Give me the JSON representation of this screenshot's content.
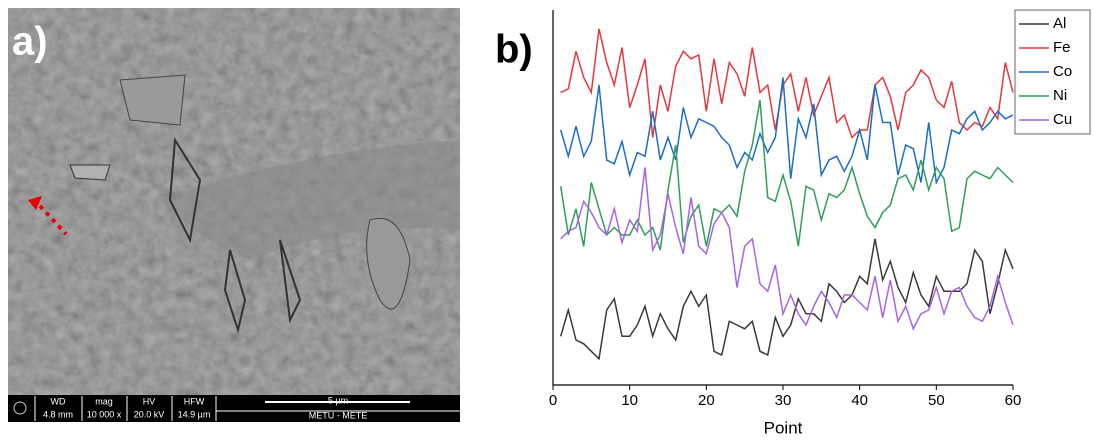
{
  "sem_image": {
    "panel_label": "a)",
    "info_bar": {
      "headers": [
        "WD",
        "mag",
        "HV",
        "HFW"
      ],
      "values": [
        "4.8 mm",
        "10 000 x",
        "20.0 kV",
        "14.9 µm"
      ],
      "scale": "5 µm",
      "lab": "METU - METE"
    }
  },
  "chart_data": {
    "type": "line",
    "panel_label": "b)",
    "x_label": "Point",
    "x": [
      1,
      2,
      3,
      4,
      5,
      6,
      7,
      8,
      9,
      10,
      11,
      12,
      13,
      14,
      15,
      16,
      17,
      18,
      19,
      20,
      21,
      22,
      23,
      24,
      25,
      26,
      27,
      28,
      29,
      30,
      31,
      32,
      33,
      34,
      35,
      36,
      37,
      38,
      39,
      40,
      41,
      42,
      43,
      44,
      45,
      46,
      47,
      48,
      49,
      50,
      51,
      52,
      53,
      54,
      55,
      56,
      57,
      58,
      59,
      60
    ],
    "xlim": [
      0,
      60
    ],
    "xticks": [
      0,
      10,
      20,
      30,
      40,
      50,
      60
    ],
    "ylim": [
      0,
      100
    ],
    "legend": "right",
    "series": [
      {
        "name": "Al",
        "color": "#3a3a3a",
        "values": [
          13,
          20,
          12,
          11,
          9,
          7,
          20,
          23,
          13,
          13,
          16,
          21,
          13,
          19,
          15,
          12,
          21,
          25,
          21,
          24,
          9,
          8,
          17,
          16,
          15,
          17,
          9,
          8,
          18,
          13,
          16,
          23,
          19,
          19,
          17,
          27,
          25,
          22,
          24,
          29,
          27,
          39,
          28,
          33,
          26,
          22,
          30,
          24,
          21,
          29,
          25,
          25,
          25,
          27,
          36,
          33,
          19,
          27,
          36,
          31
        ]
      },
      {
        "name": "Fe",
        "color": "#e0393e",
        "values": [
          78,
          79,
          89,
          82,
          78,
          95,
          86,
          80,
          90,
          74,
          80,
          87,
          66,
          80,
          73,
          85,
          89,
          87,
          88,
          73,
          87,
          75,
          86,
          83,
          77,
          90,
          78,
          80,
          68,
          80,
          83,
          73,
          82,
          72,
          77,
          82,
          70,
          72,
          66,
          68,
          68,
          80,
          82,
          77,
          68,
          78,
          80,
          84,
          82,
          76,
          74,
          81,
          70,
          68,
          70,
          69,
          74,
          71,
          86,
          78
        ]
      },
      {
        "name": "Co",
        "color": "#1c6ec4",
        "values": [
          68,
          61,
          69,
          61,
          65,
          80,
          60,
          59,
          65,
          56,
          62,
          61,
          73,
          60,
          66,
          60,
          74,
          66,
          71,
          70,
          69,
          66,
          64,
          58,
          62,
          60,
          67,
          62,
          66,
          82,
          55,
          71,
          66,
          75,
          56,
          60,
          61,
          57,
          61,
          68,
          60,
          80,
          70,
          70,
          56,
          64,
          63,
          54,
          70,
          54,
          58,
          68,
          67,
          71,
          73,
          68,
          70,
          73,
          71,
          72
        ]
      },
      {
        "name": "Ni",
        "color": "#2e9e5e",
        "values": [
          53,
          40,
          47,
          37,
          54,
          47,
          40,
          42,
          40,
          40,
          44,
          40,
          42,
          36,
          52,
          64,
          38,
          45,
          48,
          37,
          47,
          46,
          48,
          45,
          57,
          64,
          76,
          50,
          49,
          56,
          49,
          37,
          53,
          52,
          44,
          51,
          50,
          52,
          58,
          51,
          45,
          42,
          46,
          48,
          55,
          56,
          52,
          60,
          52,
          58,
          55,
          41,
          42,
          55,
          57,
          56,
          55,
          58,
          56,
          54
        ]
      },
      {
        "name": "Cu",
        "color": "#a666e0",
        "values": [
          39,
          41,
          42,
          49,
          46,
          42,
          40,
          47,
          38,
          44,
          41,
          58,
          36,
          40,
          51,
          42,
          35,
          50,
          37,
          35,
          43,
          46,
          42,
          26,
          37,
          39,
          27,
          25,
          32,
          19,
          24,
          19,
          16,
          21,
          25,
          22,
          18,
          24,
          24,
          22,
          20,
          29,
          18,
          28,
          17,
          21,
          15,
          19,
          20,
          26,
          19,
          25,
          26,
          21,
          18,
          17,
          21,
          29,
          22,
          16
        ]
      }
    ]
  }
}
